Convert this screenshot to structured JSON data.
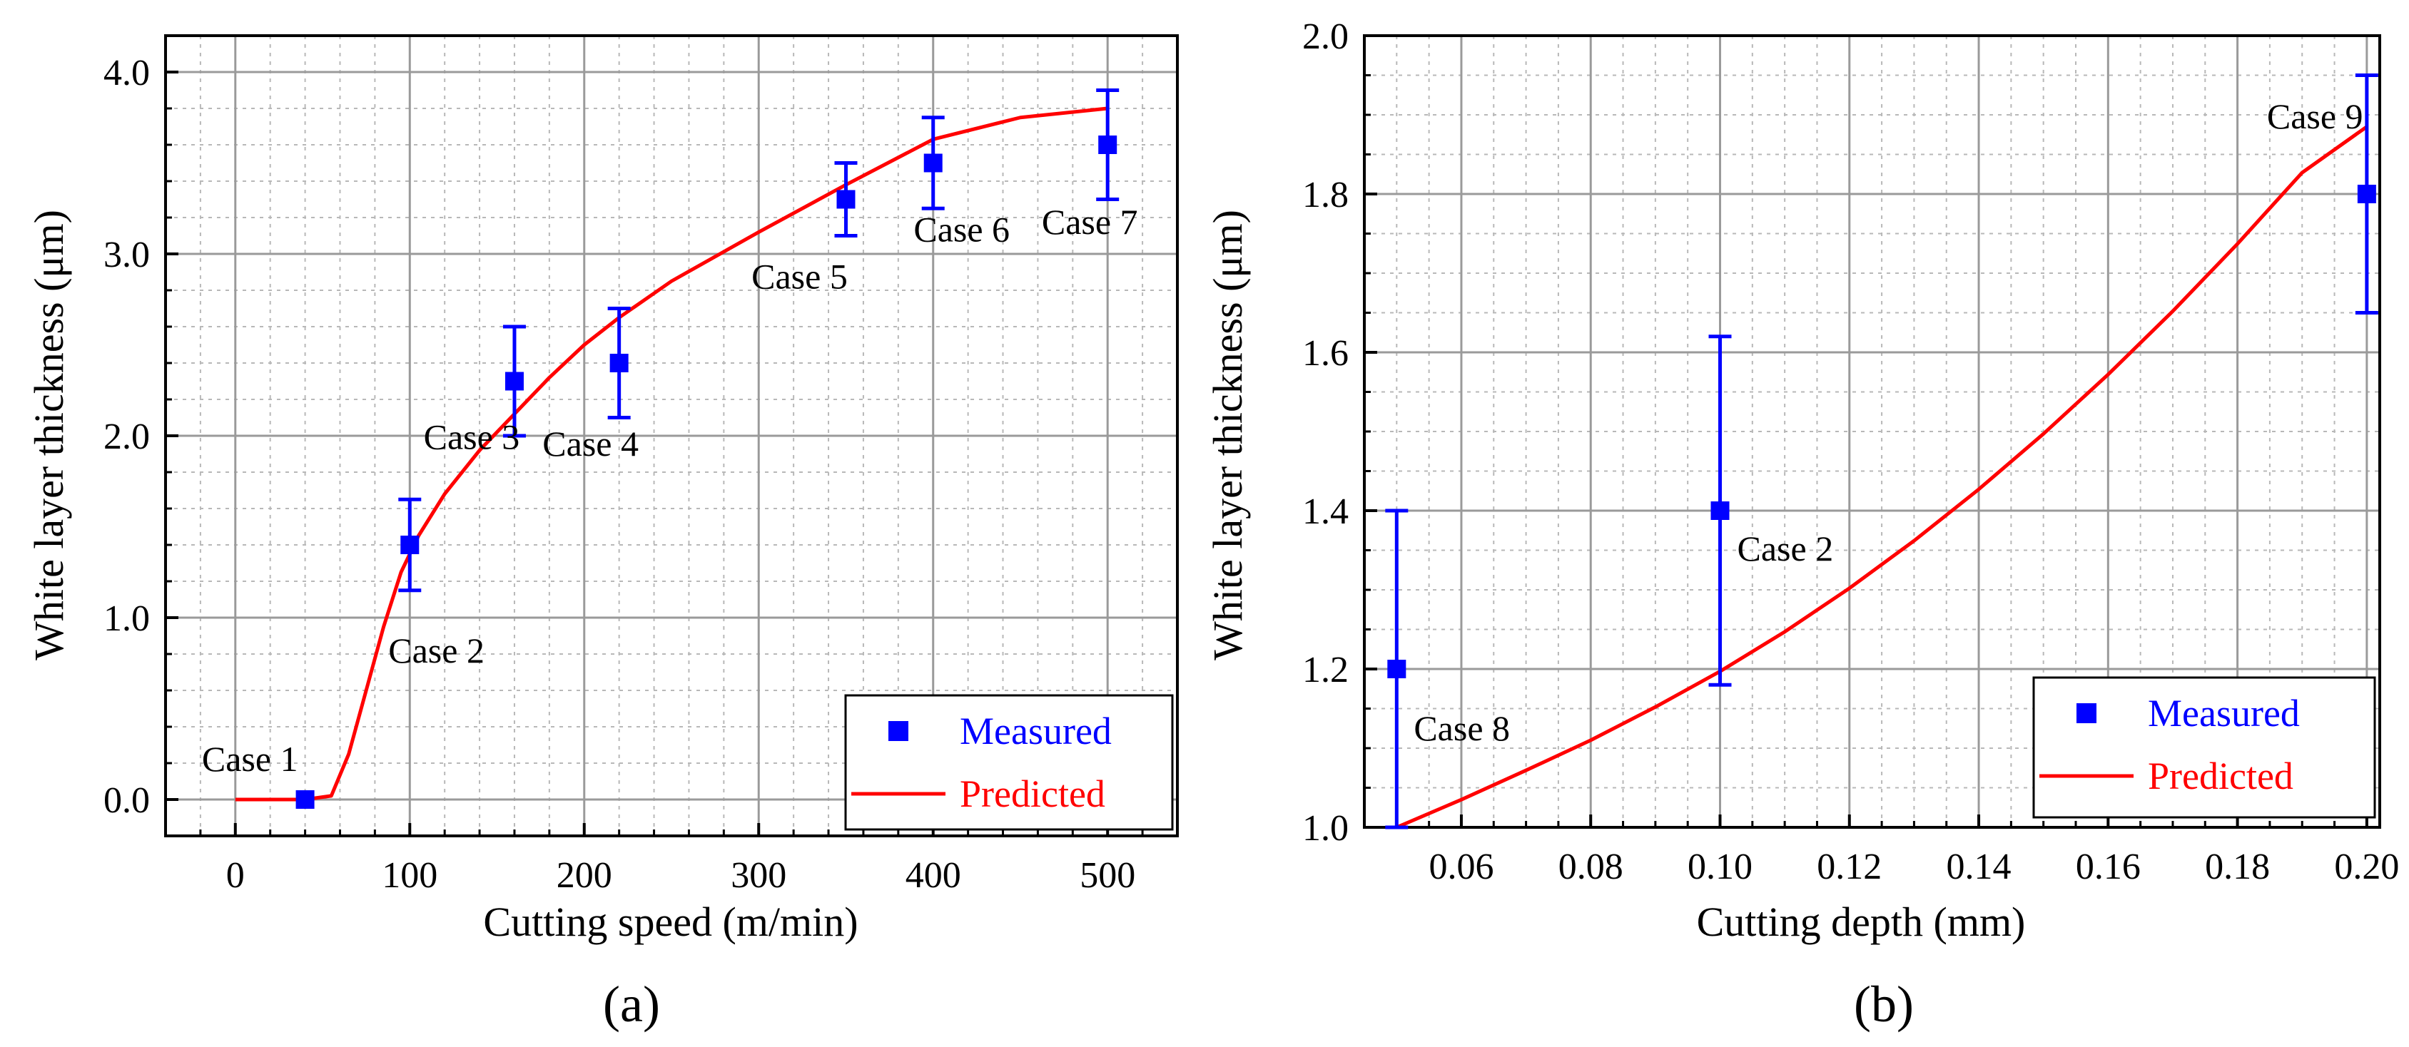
{
  "chart_data": [
    {
      "panel_label": "(a)",
      "type": "scatter",
      "title": "",
      "xlabel": "Cutting speed (m/min)",
      "ylabel": "White layer thickness (μm)",
      "xlim": [
        -40,
        540
      ],
      "ylim": [
        -0.2,
        4.2
      ],
      "xticks": [
        0,
        100,
        200,
        300,
        400,
        500
      ],
      "xtick_labels": [
        "0",
        "100",
        "200",
        "300",
        "400",
        "500"
      ],
      "yticks": [
        0,
        1,
        2,
        3,
        4
      ],
      "ytick_labels": [
        "0.0",
        "1.0",
        "2.0",
        "3.0",
        "4.0"
      ],
      "grid": true,
      "legend": {
        "placement": "bottom-right",
        "entries": [
          {
            "label": "Measured",
            "color": "#0000ff"
          },
          {
            "label": "Predicted",
            "color": "#ff0000"
          }
        ]
      },
      "series": [
        {
          "name": "Measured",
          "kind": "points_with_error_bars",
          "color": "#0000ff",
          "points": [
            {
              "x": 40,
              "y": 0.0,
              "err_low": 0.0,
              "err_high": 0.0,
              "label": "Case 1"
            },
            {
              "x": 100,
              "y": 1.4,
              "err_low": 1.15,
              "err_high": 1.65,
              "label": "Case 2"
            },
            {
              "x": 160,
              "y": 2.3,
              "err_low": 2.0,
              "err_high": 2.6,
              "label": "Case 3"
            },
            {
              "x": 220,
              "y": 2.4,
              "err_low": 2.1,
              "err_high": 2.7,
              "label": "Case 4"
            },
            {
              "x": 350,
              "y": 3.3,
              "err_low": 3.1,
              "err_high": 3.5,
              "label": "Case 5"
            },
            {
              "x": 400,
              "y": 3.5,
              "err_low": 3.25,
              "err_high": 3.75,
              "label": "Case 6"
            },
            {
              "x": 500,
              "y": 3.6,
              "err_low": 3.3,
              "err_high": 3.9,
              "label": "Case 7"
            }
          ]
        },
        {
          "name": "Predicted",
          "kind": "line",
          "color": "#ff0000",
          "x": [
            0,
            40,
            55,
            65,
            75,
            85,
            95,
            105,
            120,
            140,
            160,
            180,
            200,
            220,
            250,
            300,
            350,
            400,
            450,
            500
          ],
          "y": [
            0.0,
            0.0,
            0.02,
            0.25,
            0.6,
            0.95,
            1.25,
            1.45,
            1.68,
            1.92,
            2.12,
            2.32,
            2.5,
            2.65,
            2.85,
            3.12,
            3.38,
            3.63,
            3.75,
            3.8
          ]
        }
      ]
    },
    {
      "panel_label": "(b)",
      "type": "scatter",
      "title": "",
      "xlabel": "Cutting depth (mm)",
      "ylabel": "White layer thickness (μm)",
      "xlim": [
        0.045,
        0.202
      ],
      "ylim": [
        1.0,
        2.0
      ],
      "xticks": [
        0.06,
        0.08,
        0.1,
        0.12,
        0.14,
        0.16,
        0.18,
        0.2
      ],
      "xtick_labels": [
        "0.06",
        "0.08",
        "0.10",
        "0.12",
        "0.14",
        "0.16",
        "0.18",
        "0.20"
      ],
      "yticks": [
        1.0,
        1.2,
        1.4,
        1.6,
        1.8,
        2.0
      ],
      "ytick_labels": [
        "1.0",
        "1.2",
        "1.4",
        "1.6",
        "1.8",
        "2.0"
      ],
      "grid": true,
      "legend": {
        "placement": "bottom-right",
        "entries": [
          {
            "label": "Measured",
            "color": "#0000ff"
          },
          {
            "label": "Predicted",
            "color": "#ff0000"
          }
        ]
      },
      "series": [
        {
          "name": "Measured",
          "kind": "points_with_error_bars",
          "color": "#0000ff",
          "points": [
            {
              "x": 0.05,
              "y": 1.2,
              "err_low": 1.0,
              "err_high": 1.4,
              "label": "Case 8"
            },
            {
              "x": 0.1,
              "y": 1.4,
              "err_low": 1.18,
              "err_high": 1.62,
              "label": "Case 2"
            },
            {
              "x": 0.2,
              "y": 1.8,
              "err_low": 1.65,
              "err_high": 1.95,
              "label": "Case 9"
            }
          ]
        },
        {
          "name": "Predicted",
          "kind": "line",
          "color": "#ff0000",
          "x": [
            0.05,
            0.06,
            0.07,
            0.08,
            0.09,
            0.1,
            0.11,
            0.12,
            0.13,
            0.14,
            0.15,
            0.16,
            0.17,
            0.18,
            0.19,
            0.2
          ],
          "y": [
            1.0,
            1.035,
            1.072,
            1.11,
            1.152,
            1.197,
            1.247,
            1.302,
            1.362,
            1.427,
            1.497,
            1.572,
            1.652,
            1.737,
            1.827,
            1.885
          ]
        }
      ]
    }
  ]
}
